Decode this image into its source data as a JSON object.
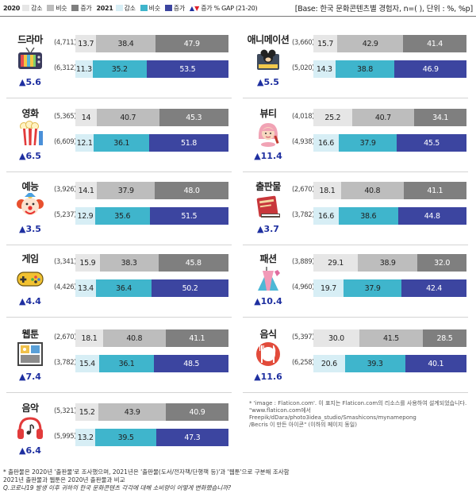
{
  "legend": {
    "year2020": "2020",
    "year2021": "2021",
    "decrease": "감소",
    "similar": "비슷",
    "increase": "증가",
    "gap": "증가 % GAP (21-20)",
    "base": "[Base: 한국 문화콘텐츠별 경험자, n=( ), 단위 : %, %p]"
  },
  "colors": {
    "decrease_2020": "#e6e6e6",
    "similar_2020": "#bdbdbd",
    "increase_2020": "#7f7f7f",
    "decrease_2021": "#d7eef5",
    "similar_2021": "#3fb5cc",
    "increase_2021": "#3c45a0",
    "gap_up": "#1e2fa0",
    "gap_down": "#e0202a"
  },
  "chart_data": {
    "type": "bar",
    "stacked": true,
    "series": [
      "감소",
      "비슷",
      "증가"
    ],
    "categories": [
      {
        "name": "드라마",
        "icon": "tv-icon",
        "gap": "▲5.6",
        "y2020": {
          "n": "(4,711)",
          "values": [
            13.7,
            38.4,
            47.9
          ]
        },
        "y2021": {
          "n": "(6,312)",
          "values": [
            11.3,
            35.2,
            53.5
          ]
        }
      },
      {
        "name": "애니메이션",
        "icon": "animation-character-icon",
        "gap": "▲5.5",
        "y2020": {
          "n": "(3,660)",
          "values": [
            15.7,
            42.9,
            41.4
          ]
        },
        "y2021": {
          "n": "(5,020)",
          "values": [
            14.3,
            38.8,
            46.9
          ]
        }
      },
      {
        "name": "영화",
        "icon": "popcorn-icon",
        "gap": "▲6.5",
        "y2020": {
          "n": "(5,365)",
          "values": [
            14,
            40.7,
            45.3
          ]
        },
        "y2021": {
          "n": "(6,609)",
          "values": [
            12.1,
            36.1,
            51.8
          ]
        }
      },
      {
        "name": "뷰티",
        "icon": "beauty-icon",
        "gap": "▲11.4",
        "y2020": {
          "n": "(4,018)",
          "values": [
            25.2,
            40.7,
            34.1
          ]
        },
        "y2021": {
          "n": "(4,938)",
          "values": [
            16.6,
            37.9,
            45.5
          ]
        }
      },
      {
        "name": "예능",
        "icon": "clown-icon",
        "gap": "▲3.5",
        "y2020": {
          "n": "(3,926)",
          "values": [
            14.1,
            37.9,
            48.0
          ]
        },
        "y2021": {
          "n": "(5,237)",
          "values": [
            12.9,
            35.6,
            51.5
          ]
        }
      },
      {
        "name": "출판물",
        "icon": "book-icon",
        "gap": "▲3.7",
        "y2020": {
          "n": "(2,670)",
          "values": [
            18.1,
            40.8,
            41.1
          ]
        },
        "y2021": {
          "n": "(3,782)",
          "values": [
            16.6,
            38.6,
            44.8
          ]
        }
      },
      {
        "name": "게임",
        "icon": "gamepad-icon",
        "gap": "▲4.4",
        "y2020": {
          "n": "(3,341)",
          "values": [
            15.9,
            38.3,
            45.8
          ]
        },
        "y2021": {
          "n": "(4,426)",
          "values": [
            13.4,
            36.4,
            50.2
          ]
        }
      },
      {
        "name": "패션",
        "icon": "dress-icon",
        "gap": "▲10.4",
        "y2020": {
          "n": "(3,889)",
          "values": [
            29.1,
            38.9,
            32.0
          ]
        },
        "y2021": {
          "n": "(4,960)",
          "values": [
            19.7,
            37.9,
            42.4
          ]
        }
      },
      {
        "name": "웹툰",
        "icon": "webtoon-icon",
        "gap": "▲7.4",
        "y2020": {
          "n": "(2,670)",
          "values": [
            18.1,
            40.8,
            41.1
          ]
        },
        "y2021": {
          "n": "(3,782)",
          "values": [
            15.4,
            36.1,
            48.5
          ]
        }
      },
      {
        "name": "음식",
        "icon": "food-icon",
        "gap": "▲11.6",
        "y2020": {
          "n": "(5,397)",
          "values": [
            30.0,
            41.5,
            28.5
          ]
        },
        "y2021": {
          "n": "(6,258)",
          "values": [
            20.6,
            39.3,
            40.1
          ]
        }
      },
      {
        "name": "음악",
        "icon": "headphones-icon",
        "gap": "▲6.4",
        "y2020": {
          "n": "(5,321)",
          "values": [
            15.2,
            43.9,
            40.9
          ]
        },
        "y2021": {
          "n": "(5,995)",
          "values": [
            13.2,
            39.5,
            47.3
          ]
        }
      }
    ]
  },
  "source_note": [
    "* 'image : Flaticon.com'. 이 표지는 Flaticon.com의 리소스를 사용하여 설계되었습니다.",
    "\"www.flaticon.com에서 Freepik/dDara/photo3idea_studio/Smashicons/mynamepong",
    "/Becris 이 만든 아이콘\" (이하의 페이지 동일)"
  ],
  "footnote": {
    "line1": "* 출판물은 2020년 '출판물'로 조사했으며, 2021년은 '출판물(도서/전자책/단행책 등)'과 '웹툰'으로 구분해 조사함",
    "line2": "  2021년 출판물과 웹툰은 2020년 출판물과 비교",
    "question": "Q.코로나19 발생 이후 귀하의 한국 문화콘텐츠 각각에 대해 소비량이 어떻게 변화했습니까?"
  }
}
